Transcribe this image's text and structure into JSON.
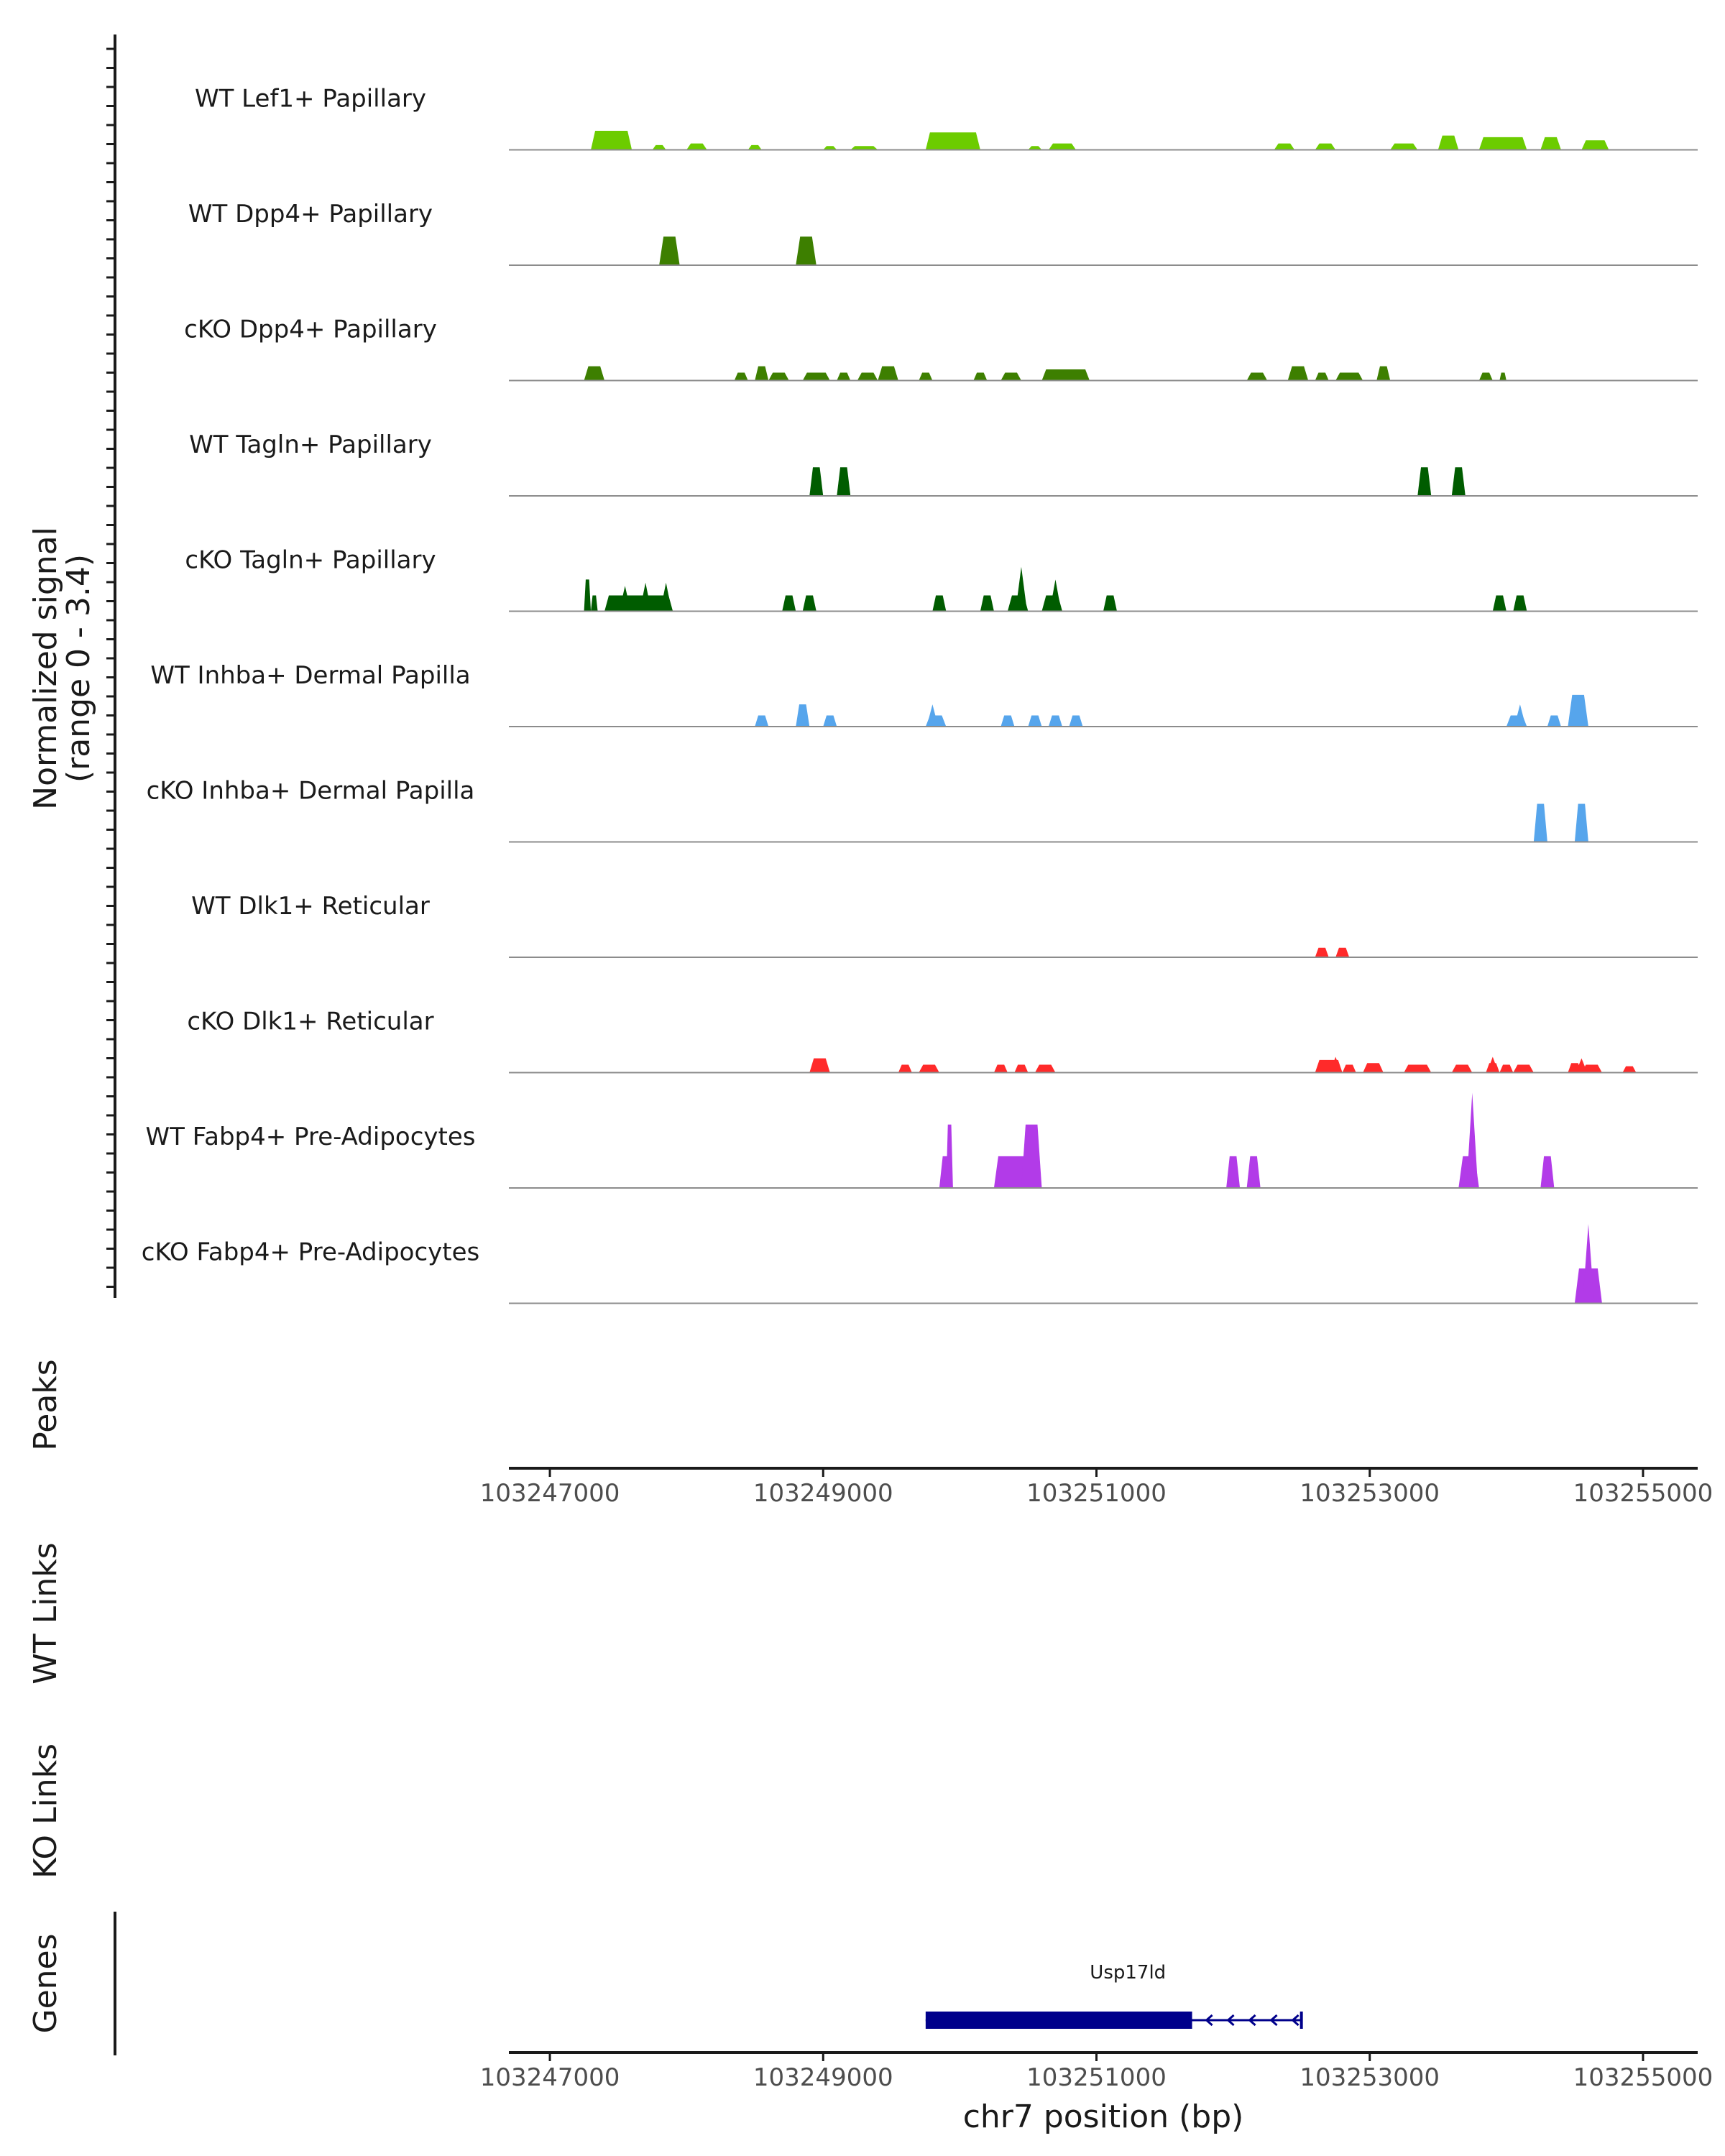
{
  "chart_data": {
    "type": "area",
    "chromosome": "chr7",
    "region": [
      103246700,
      103255400
    ],
    "y_axis_label": [
      "Normalized signal",
      "(range 0 - 3.4)"
    ],
    "ylim": [
      0,
      3.4
    ],
    "tracks": [
      {
        "name": "WT Lef1+ Papillary",
        "color": "#6ccc00",
        "segments": [
          [
            103247300,
            103247600,
            0.6
          ],
          [
            103247750,
            103247850,
            0.15
          ],
          [
            103248000,
            103248150,
            0.2
          ],
          [
            103248450,
            103248550,
            0.15
          ],
          [
            103249000,
            103249100,
            0.12
          ],
          [
            103249200,
            103249400,
            0.12
          ],
          [
            103249750,
            103250150,
            0.55
          ],
          [
            103250500,
            103250600,
            0.12
          ],
          [
            103250650,
            103250850,
            0.2
          ],
          [
            103252300,
            103252450,
            0.2
          ],
          [
            103252600,
            103252750,
            0.2
          ],
          [
            103253150,
            103253350,
            0.2
          ],
          [
            103253500,
            103253650,
            0.45
          ],
          [
            103253800,
            103254150,
            0.4
          ],
          [
            103254250,
            103254400,
            0.4
          ],
          [
            103254550,
            103254750,
            0.3
          ]
        ],
        "spikes": [
          [
            103247400,
            0.5
          ],
          [
            103249800,
            0.55
          ],
          [
            103253600,
            0.45
          ],
          [
            103254350,
            0.4
          ]
        ]
      },
      {
        "name": "WT Dpp4+ Papillary",
        "color": "#3d7f00",
        "segments": [
          [
            103247800,
            103247950,
            0.9
          ],
          [
            103248800,
            103248950,
            0.9
          ]
        ],
        "spikes": []
      },
      {
        "name": "cKO Dpp4+ Papillary",
        "color": "#3d7f00",
        "segments": [
          [
            103247250,
            103247400,
            0.45
          ],
          [
            103248350,
            103248450,
            0.25
          ],
          [
            103248500,
            103248600,
            0.45
          ],
          [
            103248600,
            103248750,
            0.25
          ],
          [
            103248850,
            103249050,
            0.25
          ],
          [
            103249100,
            103249200,
            0.25
          ],
          [
            103249250,
            103249400,
            0.25
          ],
          [
            103249400,
            103249550,
            0.45
          ],
          [
            103249700,
            103249800,
            0.25
          ],
          [
            103250100,
            103250200,
            0.25
          ],
          [
            103250300,
            103250450,
            0.25
          ],
          [
            103250600,
            103250950,
            0.35
          ],
          [
            103252100,
            103252250,
            0.25
          ],
          [
            103252400,
            103252550,
            0.45
          ],
          [
            103252600,
            103252700,
            0.25
          ],
          [
            103252750,
            103252950,
            0.25
          ],
          [
            103253050,
            103253150,
            0.45
          ],
          [
            103253800,
            103253900,
            0.25
          ],
          [
            103253950,
            103254000,
            0.25
          ]
        ],
        "spikes": [
          [
            103250750,
            0.35
          ]
        ]
      },
      {
        "name": "WT Tagln+ Papillary",
        "color": "#005c00",
        "segments": [
          [
            103248900,
            103249000,
            0.9
          ],
          [
            103249100,
            103249200,
            0.9
          ],
          [
            103253350,
            103253450,
            0.9
          ],
          [
            103253600,
            103253700,
            0.9
          ]
        ],
        "spikes": []
      },
      {
        "name": "cKO Tagln+ Papillary",
        "color": "#005c00",
        "segments": [
          [
            103247250,
            103247300,
            1.0
          ],
          [
            103247300,
            103247350,
            0.5
          ],
          [
            103247400,
            103247900,
            0.5
          ],
          [
            103248700,
            103248800,
            0.5
          ],
          [
            103248850,
            103248950,
            0.5
          ],
          [
            103249800,
            103249900,
            0.5
          ],
          [
            103250150,
            103250250,
            0.5
          ],
          [
            103250350,
            103250500,
            0.5
          ],
          [
            103250600,
            103250750,
            0.5
          ],
          [
            103251050,
            103251150,
            0.5
          ],
          [
            103253900,
            103254000,
            0.5
          ],
          [
            103254050,
            103254150,
            0.5
          ]
        ],
        "spikes": [
          [
            103247700,
            0.9
          ],
          [
            103247850,
            0.9
          ],
          [
            103247550,
            0.8
          ],
          [
            103250450,
            1.4
          ],
          [
            103250700,
            1.0
          ]
        ]
      },
      {
        "name": "WT Inhba+ Dermal Papilla",
        "color": "#56a5ec",
        "segments": [
          [
            103248500,
            103248600,
            0.35
          ],
          [
            103248800,
            103248900,
            0.7
          ],
          [
            103249000,
            103249100,
            0.35
          ],
          [
            103249750,
            103249900,
            0.35
          ],
          [
            103250300,
            103250400,
            0.35
          ],
          [
            103250500,
            103250600,
            0.35
          ],
          [
            103250650,
            103250750,
            0.35
          ],
          [
            103250800,
            103250900,
            0.35
          ],
          [
            103254000,
            103254150,
            0.35
          ],
          [
            103254300,
            103254400,
            0.35
          ],
          [
            103254450,
            103254600,
            1.0
          ]
        ],
        "spikes": [
          [
            103249800,
            0.7
          ],
          [
            103254100,
            0.7
          ]
        ]
      },
      {
        "name": "cKO Inhba+ Dermal Papilla",
        "color": "#56a5ec",
        "segments": [
          [
            103254200,
            103254300,
            1.2
          ],
          [
            103254500,
            103254600,
            1.2
          ]
        ],
        "spikes": []
      },
      {
        "name": "WT Dlk1+ Reticular",
        "color": "#ff2a2a",
        "segments": [
          [
            103252600,
            103252700,
            0.3
          ],
          [
            103252750,
            103252850,
            0.3
          ]
        ],
        "spikes": []
      },
      {
        "name": "cKO Dlk1+ Reticular",
        "color": "#ff2a2a",
        "segments": [
          [
            103248900,
            103249050,
            0.45
          ],
          [
            103249550,
            103249650,
            0.25
          ],
          [
            103249700,
            103249850,
            0.25
          ],
          [
            103250250,
            103250350,
            0.25
          ],
          [
            103250400,
            103250500,
            0.25
          ],
          [
            103250550,
            103250700,
            0.25
          ],
          [
            103252600,
            103252800,
            0.4
          ],
          [
            103252800,
            103252900,
            0.25
          ],
          [
            103252950,
            103253100,
            0.3
          ],
          [
            103253250,
            103253450,
            0.25
          ],
          [
            103253600,
            103253750,
            0.25
          ],
          [
            103253850,
            103253950,
            0.3
          ],
          [
            103253950,
            103254050,
            0.25
          ],
          [
            103254050,
            103254200,
            0.25
          ],
          [
            103254450,
            103254550,
            0.3
          ],
          [
            103254550,
            103254700,
            0.25
          ],
          [
            103254850,
            103254950,
            0.2
          ]
        ],
        "spikes": [
          [
            103252750,
            0.5
          ],
          [
            103253900,
            0.5
          ],
          [
            103254550,
            0.45
          ]
        ]
      },
      {
        "name": "WT Fabp4+ Pre-Adipocytes",
        "color": "#b23be8",
        "segments": [
          [
            103249850,
            103249950,
            1.0
          ],
          [
            103249900,
            103249950,
            2.0
          ],
          [
            103250250,
            103250500,
            1.0
          ],
          [
            103250450,
            103250600,
            2.0
          ],
          [
            103251950,
            103252050,
            1.0
          ],
          [
            103252100,
            103252200,
            1.0
          ],
          [
            103253650,
            103253800,
            1.0
          ],
          [
            103254250,
            103254350,
            1.0
          ]
        ],
        "spikes": [
          [
            103253750,
            3.0
          ]
        ]
      },
      {
        "name": "cKO Fabp4+ Pre-Adipocytes",
        "color": "#b23be8",
        "segments": [
          [
            103254500,
            103254700,
            1.1
          ]
        ],
        "spikes": [
          [
            103254600,
            2.5
          ]
        ]
      }
    ],
    "peaks_label": "Peaks",
    "wt_links_label": "WT Links",
    "ko_links_label": "KO Links",
    "genes_label": "Genes",
    "x_ticks": [
      103247000,
      103249000,
      103251000,
      103253000,
      103255000
    ],
    "x_tick_labels": [
      "103247000",
      "103249000",
      "103251000",
      "103253000",
      "103255000"
    ],
    "xlabel": "chr7 position (bp)",
    "gene": {
      "name": "Usp17ld",
      "strand": "-",
      "start": 103249750,
      "end": 103252500,
      "exon_start": 103249750,
      "exon_end": 103251700,
      "color": "#00008b"
    }
  }
}
